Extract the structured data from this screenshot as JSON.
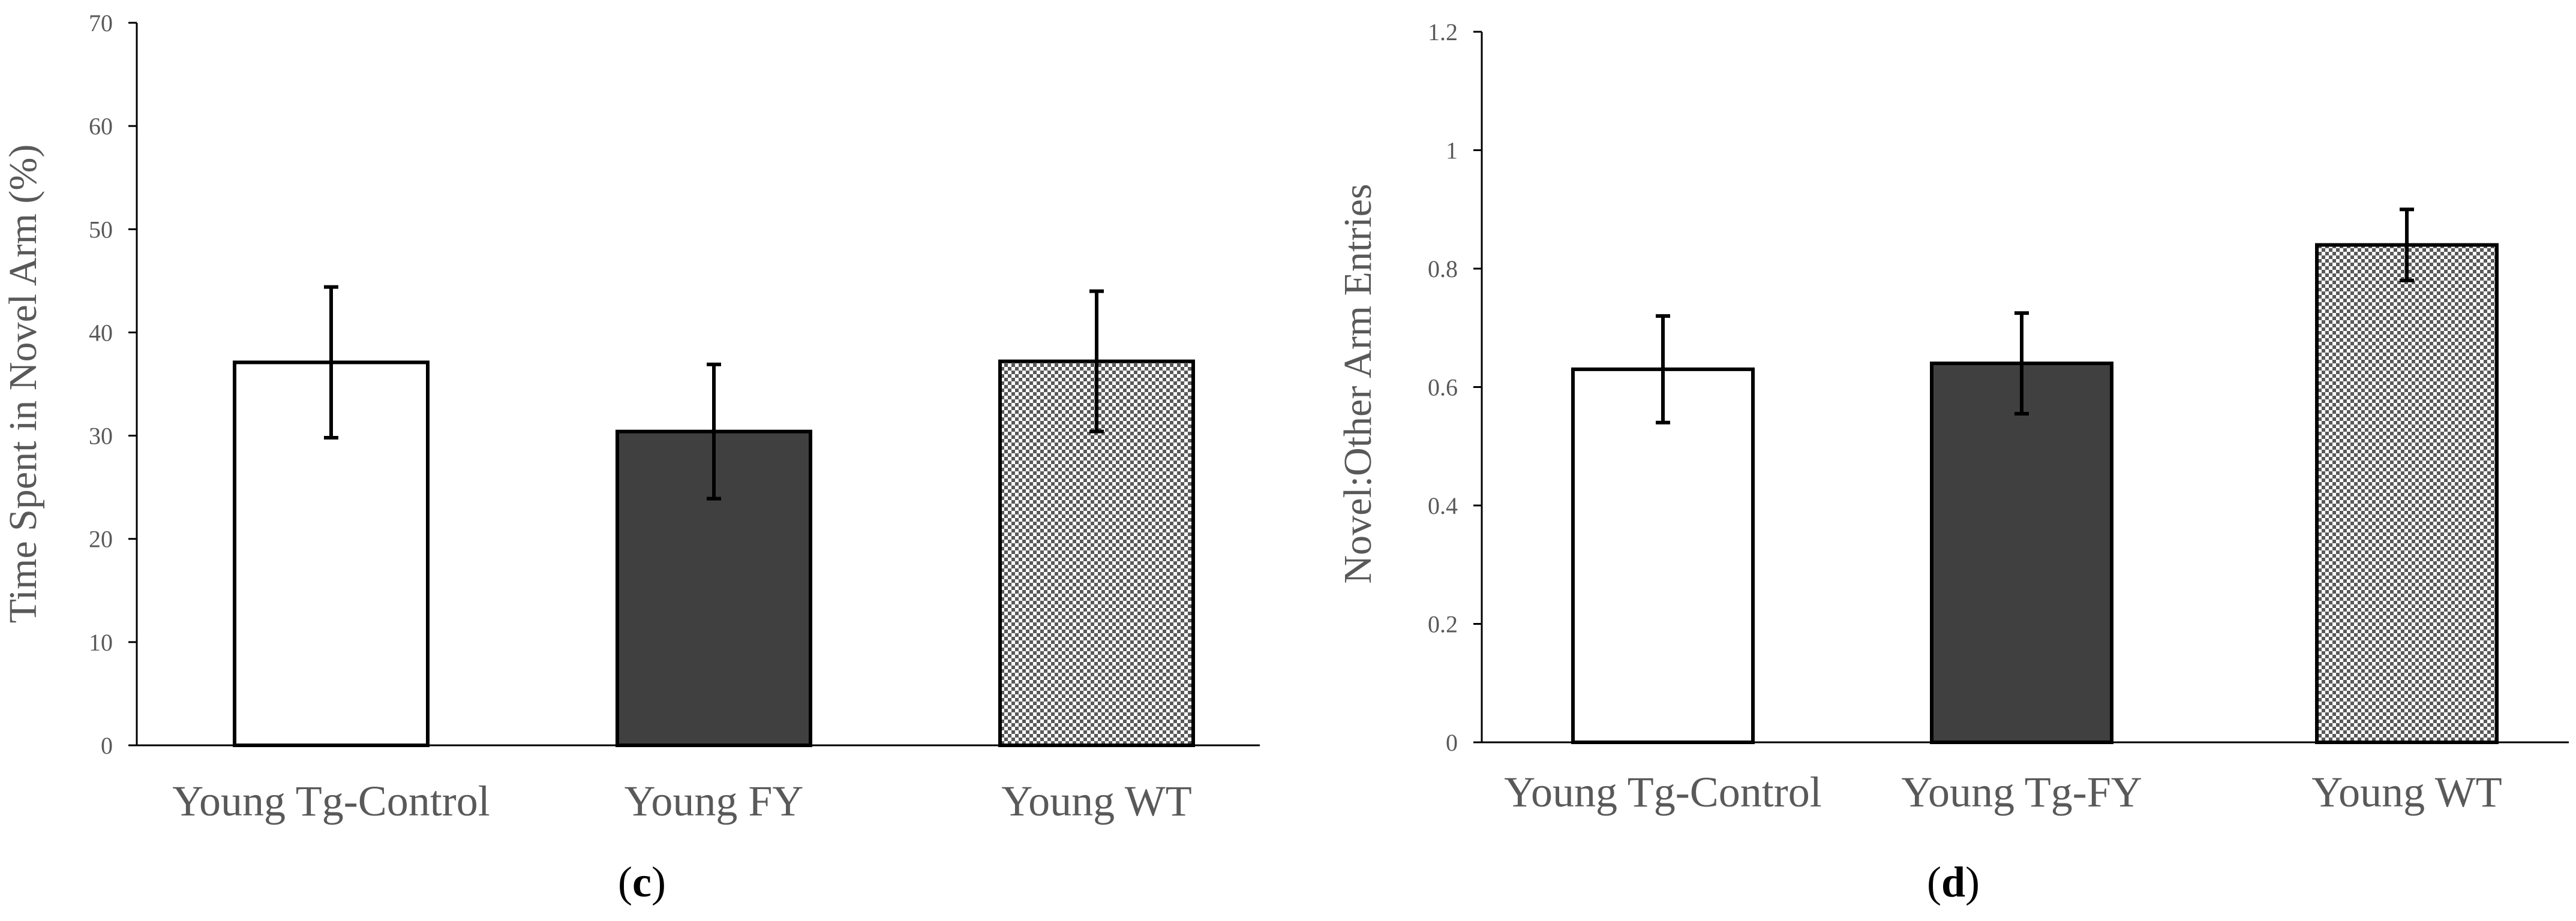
{
  "chart_data": [
    {
      "type": "bar",
      "panel_label": "c",
      "title": "",
      "xlabel": "",
      "ylabel": "Time Spent in Novel Arm (%)",
      "ylim": [
        0,
        70
      ],
      "yticks": [
        0,
        10,
        20,
        30,
        40,
        50,
        60,
        70
      ],
      "categories": [
        "Young Tg-Control",
        "Young FY",
        "Young WT"
      ],
      "values": [
        37.1,
        30.4,
        37.2
      ],
      "error": [
        7.3,
        6.5,
        6.8
      ],
      "fills": [
        "white",
        "dark",
        "pattern"
      ],
      "grid": false,
      "legend": "none"
    },
    {
      "type": "bar",
      "panel_label": "d",
      "title": "",
      "xlabel": "",
      "ylabel": "Novel:Other Arm Entries",
      "ylim": [
        0,
        1.2
      ],
      "yticks": [
        0,
        0.2,
        0.4,
        0.6,
        0.8,
        1,
        1.2
      ],
      "categories": [
        "Young Tg-Control",
        "Young Tg-FY",
        "Young WT"
      ],
      "values": [
        0.63,
        0.64,
        0.84
      ],
      "error": [
        0.09,
        0.085,
        0.06
      ],
      "fills": [
        "white",
        "dark",
        "pattern"
      ],
      "grid": false,
      "legend": "none"
    }
  ],
  "colors": {
    "white_bar": "#ffffff",
    "dark_bar": "#404040",
    "pattern_fg": "#595959",
    "pattern_bg": "#ffffff",
    "axis": "#000000",
    "label_text": "#595959"
  }
}
